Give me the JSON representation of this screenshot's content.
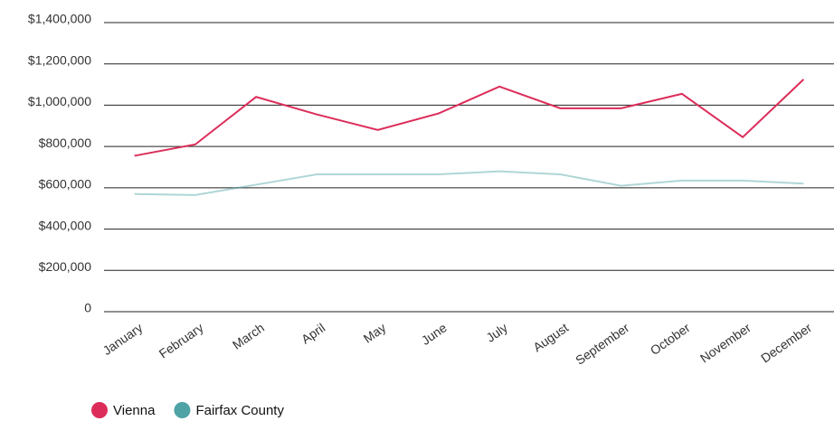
{
  "chart_data": {
    "type": "line",
    "categories": [
      "January",
      "February",
      "March",
      "April",
      "May",
      "June",
      "July",
      "August",
      "September",
      "October",
      "November",
      "December"
    ],
    "series": [
      {
        "name": "Vienna",
        "color": "#dc2d5a",
        "values": [
          755000,
          810000,
          1040000,
          955000,
          880000,
          960000,
          1090000,
          985000,
          985000,
          1055000,
          845000,
          1125000
        ]
      },
      {
        "name": "Fairfax County",
        "color": "#4fa3a5",
        "values": [
          570000,
          565000,
          615000,
          665000,
          665000,
          665000,
          680000,
          665000,
          610000,
          635000,
          635000,
          620000
        ]
      }
    ],
    "ylim": [
      0,
      1400000
    ],
    "yticks": [
      0,
      {
        "value": 200000,
        "label": "$200,000"
      },
      {
        "value": 400000,
        "label": "$400,000"
      },
      {
        "value": 600000,
        "label": "$600,000"
      },
      {
        "value": 800000,
        "label": "$800,000"
      },
      {
        "value": 1000000,
        "label": "$1,000,000"
      },
      {
        "value": 1200000,
        "label": "$1,200,000"
      },
      {
        "value": 1400000,
        "label": "$1,400,000"
      }
    ],
    "grid": true
  }
}
